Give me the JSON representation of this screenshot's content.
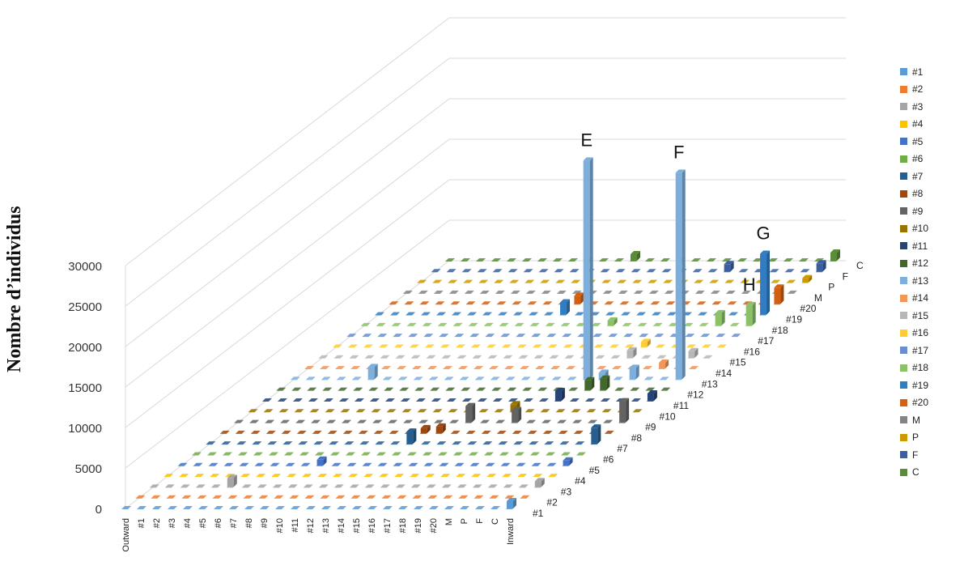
{
  "chart_data": {
    "type": "bar3d",
    "ylabel": "Nombre d’individus",
    "ylim": [
      0,
      30000
    ],
    "yticks": [
      0,
      5000,
      10000,
      15000,
      20000,
      25000,
      30000
    ],
    "x_categories": [
      "Outward",
      "#1",
      "#2",
      "#3",
      "#4",
      "#5",
      "#6",
      "#7",
      "#8",
      "#9",
      "#10",
      "#11",
      "#12",
      "#13",
      "#14",
      "#15",
      "#16",
      "#17",
      "#18",
      "#19",
      "#20",
      "M",
      "P",
      "F",
      "C",
      "Inward"
    ],
    "depth_categories": [
      "#1",
      "#2",
      "#3",
      "#4",
      "#5",
      "#6",
      "#7",
      "#8",
      "#9",
      "#10",
      "#11",
      "#12",
      "#13",
      "#14",
      "#15",
      "#16",
      "#17",
      "#18",
      "#19",
      "#20",
      "M",
      "P",
      "F",
      "C"
    ],
    "series_colors": {
      "#1": "#5b9bd5",
      "#2": "#ed7d31",
      "#3": "#a5a5a5",
      "#4": "#ffc000",
      "#5": "#4472c4",
      "#6": "#70ad47",
      "#7": "#255e91",
      "#8": "#9e480e",
      "#9": "#636363",
      "#10": "#997300",
      "#11": "#264478",
      "#12": "#43682b",
      "#13": "#7cafdd",
      "#14": "#f1975a",
      "#15": "#b7b7b7",
      "#16": "#ffcd33",
      "#17": "#698ed0",
      "#18": "#8cc168",
      "#19": "#327dc2",
      "#20": "#d26012",
      "M": "#848484",
      "P": "#cc9a00",
      "F": "#3a5fa0",
      "C": "#5b8c3a"
    },
    "values": [
      {
        "series": "#1",
        "x": "Inward",
        "y": 900
      },
      {
        "series": "#3",
        "x": "#5",
        "y": 1100
      },
      {
        "series": "#3",
        "x": "Inward",
        "y": 700
      },
      {
        "series": "#5",
        "x": "#9",
        "y": 700
      },
      {
        "series": "#5",
        "x": "Inward",
        "y": 600
      },
      {
        "series": "#7",
        "x": "#13",
        "y": 1500
      },
      {
        "series": "#7",
        "x": "Inward",
        "y": 2000
      },
      {
        "series": "#8",
        "x": "#14",
        "y": 800
      },
      {
        "series": "#8",
        "x": "#13",
        "y": 600
      },
      {
        "series": "#9",
        "x": "#15",
        "y": 2000
      },
      {
        "series": "#9",
        "x": "#18",
        "y": 1500
      },
      {
        "series": "#9",
        "x": "Inward",
        "y": 2600
      },
      {
        "series": "#10",
        "x": "#17",
        "y": 900
      },
      {
        "series": "#11",
        "x": "#19",
        "y": 1200
      },
      {
        "series": "#11",
        "x": "Inward",
        "y": 900
      },
      {
        "series": "#12",
        "x": "#20",
        "y": 1200
      },
      {
        "series": "#12",
        "x": "M",
        "y": 1400
      },
      {
        "series": "#13",
        "x": "#5",
        "y": 1500
      },
      {
        "series": "#13",
        "x": "#19",
        "y": 27000
      },
      {
        "series": "#13",
        "x": "P",
        "y": 1400
      },
      {
        "series": "#13",
        "x": "#20",
        "y": 800
      },
      {
        "series": "#13",
        "x": "Inward",
        "y": 25500
      },
      {
        "series": "#14",
        "x": "F",
        "y": 700
      },
      {
        "series": "#15",
        "x": "C",
        "y": 800
      },
      {
        "series": "#15",
        "x": "#20",
        "y": 900
      },
      {
        "series": "#16",
        "x": "#20",
        "y": 600
      },
      {
        "series": "#18",
        "x": "#16",
        "y": 600
      },
      {
        "series": "#18",
        "x": "F",
        "y": 1500
      },
      {
        "series": "#18",
        "x": "Inward",
        "y": 2500
      },
      {
        "series": "#19",
        "x": "#12",
        "y": 1500
      },
      {
        "series": "#19",
        "x": "Inward",
        "y": 7500
      },
      {
        "series": "#20",
        "x": "#12",
        "y": 1000
      },
      {
        "series": "#20",
        "x": "Inward",
        "y": 2000
      },
      {
        "series": "P",
        "x": "Inward",
        "y": 500
      },
      {
        "series": "F",
        "x": "#19",
        "y": 900
      },
      {
        "series": "F",
        "x": "Inward",
        "y": 1000
      },
      {
        "series": "C",
        "x": "#12",
        "y": 800
      },
      {
        "series": "C",
        "x": "Inward",
        "y": 1000
      }
    ],
    "annotations": [
      {
        "text": "E",
        "series": "#13",
        "x": "#19"
      },
      {
        "text": "F",
        "series": "#13",
        "x": "Inward"
      },
      {
        "text": "G",
        "series": "#19",
        "x": "Inward"
      },
      {
        "text": "H",
        "series": "#18",
        "x": "Inward"
      }
    ],
    "legend": [
      "#1",
      "#2",
      "#3",
      "#4",
      "#5",
      "#6",
      "#7",
      "#8",
      "#9",
      "#10",
      "#11",
      "#12",
      "#13",
      "#14",
      "#15",
      "#16",
      "#17",
      "#18",
      "#19",
      "#20",
      "M",
      "P",
      "F",
      "C"
    ],
    "legend_position": "right"
  }
}
